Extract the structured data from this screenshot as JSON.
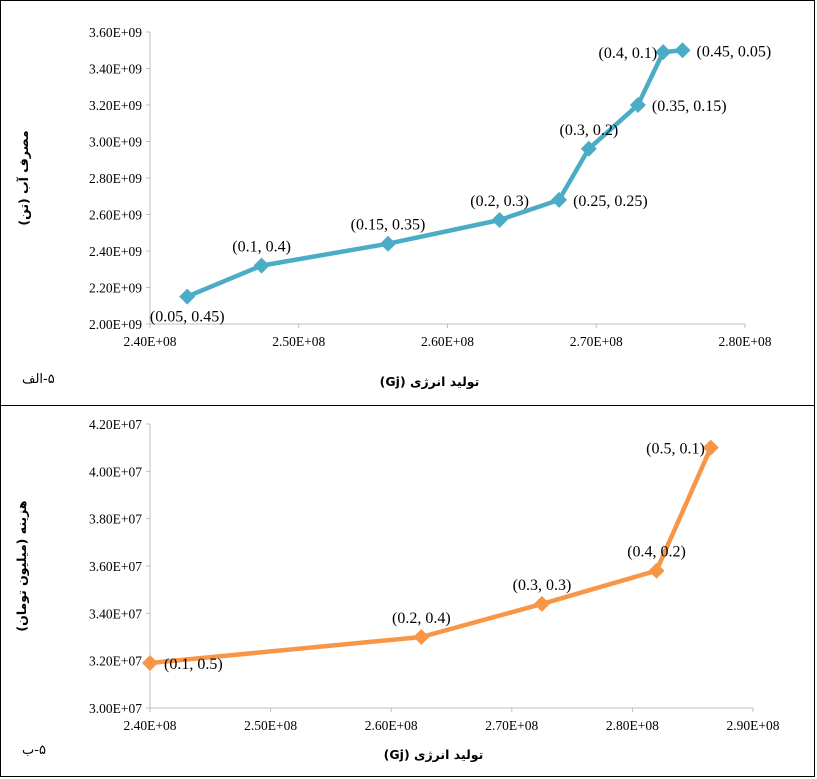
{
  "chart_data": [
    {
      "type": "line",
      "panel_label": "۵-الف",
      "xlabel": "تولید انرژی (Gj)",
      "ylabel": "مصرف آب (تن)",
      "xlim": [
        240000000,
        280000000
      ],
      "ylim": [
        2000000000,
        3600000000
      ],
      "x_ticks": [
        "2.40E+08",
        "2.50E+08",
        "2.60E+08",
        "2.70E+08",
        "2.80E+08"
      ],
      "y_ticks": [
        "2.00E+09",
        "2.20E+09",
        "2.40E+09",
        "2.60E+09",
        "2.80E+09",
        "3.00E+09",
        "3.20E+09",
        "3.40E+09",
        "3.60E+09"
      ],
      "color": "#4BACC6",
      "marker": "diamond",
      "points": [
        {
          "x": 242500000,
          "y": 2150000000,
          "label": "(0.05, 0.45)",
          "pos": "below"
        },
        {
          "x": 247500000,
          "y": 2320000000,
          "label": "(0.1, 0.4)",
          "pos": "above"
        },
        {
          "x": 256000000,
          "y": 2440000000,
          "label": "(0.15, 0.35)",
          "pos": "above"
        },
        {
          "x": 263500000,
          "y": 2570000000,
          "label": "(0.2, 0.3)",
          "pos": "above"
        },
        {
          "x": 267500000,
          "y": 2680000000,
          "label": "(0.25, 0.25)",
          "pos": "right"
        },
        {
          "x": 269500000,
          "y": 2960000000,
          "label": "(0.3, 0.2)",
          "pos": "above"
        },
        {
          "x": 272800000,
          "y": 3200000000,
          "label": "(0.35, 0.15)",
          "pos": "right"
        },
        {
          "x": 274500000,
          "y": 3490000000,
          "label": "(0.4, 0.1)",
          "pos": "left"
        },
        {
          "x": 275800000,
          "y": 3500000000,
          "label": "(0.45, 0.05)",
          "pos": "right"
        }
      ]
    },
    {
      "type": "line",
      "panel_label": "۵-ب",
      "xlabel": "تولید انرژی (Gj)",
      "ylabel": "هزینه (میلیون تومان)",
      "xlim": [
        240000000,
        290000000
      ],
      "ylim": [
        30000000,
        42000000
      ],
      "x_ticks": [
        "2.40E+08",
        "2.50E+08",
        "2.60E+08",
        "2.70E+08",
        "2.80E+08",
        "2.90E+08"
      ],
      "y_ticks": [
        "3.00E+07",
        "3.20E+07",
        "3.40E+07",
        "3.60E+07",
        "3.80E+07",
        "4.00E+07",
        "4.20E+07"
      ],
      "color": "#F79646",
      "marker": "diamond",
      "points": [
        {
          "x": 240000000,
          "y": 31900000,
          "label": "(0.1, 0.5)",
          "pos": "right"
        },
        {
          "x": 262500000,
          "y": 33000000,
          "label": "(0.2, 0.4)",
          "pos": "above"
        },
        {
          "x": 272500000,
          "y": 34400000,
          "label": "(0.3, 0.3)",
          "pos": "above"
        },
        {
          "x": 282000000,
          "y": 35800000,
          "label": "(0.4, 0.2)",
          "pos": "above"
        },
        {
          "x": 286500000,
          "y": 41000000,
          "label": "(0.5, 0.1)",
          "pos": "left"
        }
      ]
    }
  ]
}
